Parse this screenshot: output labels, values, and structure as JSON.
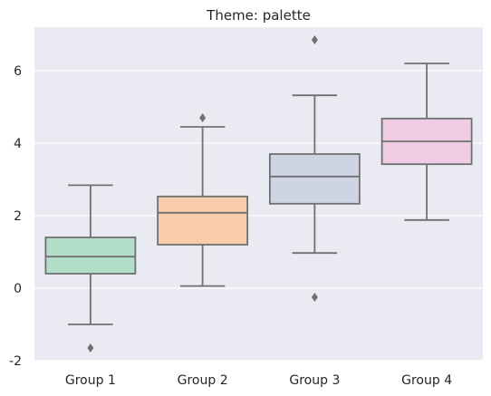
{
  "chart_data": {
    "type": "box",
    "title": "Theme: palette",
    "xlabel": "",
    "ylabel": "",
    "categories": [
      "Group 1",
      "Group 2",
      "Group 3",
      "Group 4"
    ],
    "ylim": [
      -2.0,
      7.2
    ],
    "yticks": [
      -2,
      0,
      2,
      4,
      6
    ],
    "grid": true,
    "background": "#eaeaf2",
    "box_edge_color": "#707070",
    "boxes": [
      {
        "name": "Group 1",
        "color": "#b3dfca",
        "whisker_low": -1.0,
        "q1": 0.4,
        "median": 0.87,
        "q3": 1.4,
        "whisker_high": 2.84,
        "outliers": [
          -1.65
        ]
      },
      {
        "name": "Group 2",
        "color": "#f8ccaa",
        "whisker_low": 0.06,
        "q1": 1.2,
        "median": 2.08,
        "q3": 2.53,
        "whisker_high": 4.45,
        "outliers": [
          4.7
        ]
      },
      {
        "name": "Group 3",
        "color": "#cdd5e4",
        "whisker_low": 0.97,
        "q1": 2.33,
        "median": 3.08,
        "q3": 3.7,
        "whisker_high": 5.32,
        "outliers": [
          6.85,
          -0.25
        ]
      },
      {
        "name": "Group 4",
        "color": "#f0cbe4",
        "whisker_low": 1.88,
        "q1": 3.42,
        "median": 4.05,
        "q3": 4.68,
        "whisker_high": 6.2,
        "outliers": []
      }
    ]
  }
}
